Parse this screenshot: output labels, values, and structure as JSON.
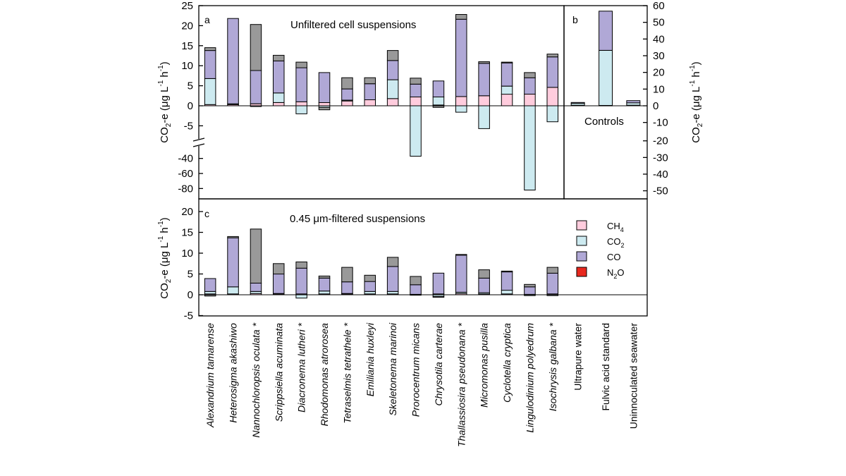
{
  "figure": {
    "yaxis_label_main": "CO",
    "yaxis_label_sub": "2",
    "yaxis_label_rest": "-e (μg L",
    "yaxis_label_exp1": "-1",
    "yaxis_label_mid": " h",
    "yaxis_label_exp2": "-1",
    "yaxis_label_close": ")",
    "panel_a": {
      "letter": "a",
      "title": "Unfiltered cell suspensions"
    },
    "panel_b": {
      "letter": "b",
      "title": "Controls"
    },
    "panel_c": {
      "letter": "c",
      "title": "0.45 μm-filtered suspensions"
    }
  },
  "legend": [
    {
      "label": "CH",
      "sub": "4",
      "color": "#ffccdd"
    },
    {
      "label": "CO",
      "sub": "2",
      "color": "#cdeaf0"
    },
    {
      "label": "CO",
      "sub": "",
      "color": "#b0a8d6"
    },
    {
      "label": "N",
      "sub": "2",
      "suffix": "O",
      "color": "#e8281e"
    }
  ],
  "chart_data": [
    {
      "panel": "a",
      "type": "bar",
      "stacked": true,
      "title": "Unfiltered cell suspensions",
      "ylabel": "CO2-e (μg L-1 h-1)",
      "ylim_upper": [
        -7,
        25
      ],
      "ylim_lower": [
        -90,
        -30
      ],
      "axis_break": true,
      "yticks": [
        25,
        20,
        15,
        10,
        5,
        0,
        -5,
        -40,
        -60,
        -80
      ],
      "categories": [
        "Alexandrium tamarense",
        "Heterosigma akashiwo",
        "Nannochloropsis oculata *",
        "Scrippsiella acuminata",
        "Diacronema lutheri *",
        "Rhodomonas atrorosea",
        "Tetraselmis tetrathele *",
        "Emiliania huxleyi",
        "Skeletonema marinoi",
        "Prorocentrum micans",
        "Chrysotila carterae",
        "Thallassiosira pseudonana *",
        "Micromonas pusilla",
        "Cyclotella cryptica",
        "Lingulodinium polyedrum",
        "Isochrysis galbana *"
      ],
      "series": [
        {
          "name": "CH4",
          "values": [
            0.3,
            0.3,
            0.5,
            0.8,
            1.0,
            0.8,
            1.2,
            1.5,
            1.8,
            2.2,
            0.2,
            2.3,
            2.5,
            2.9,
            2.9,
            4.6
          ]
        },
        {
          "name": "CO2",
          "values": [
            6.5,
            0.2,
            -0.2,
            2.4,
            -2.0,
            -0.4,
            0.2,
            0.0,
            4.7,
            -37.0,
            2.0,
            -1.6,
            -5.7,
            2.0,
            -82.0,
            -4.0
          ]
        },
        {
          "name": "CO",
          "values": [
            7.0,
            21.3,
            8.3,
            8.0,
            8.5,
            7.5,
            2.8,
            4.0,
            4.8,
            3.2,
            4.0,
            19.3,
            8.1,
            5.8,
            4.1,
            7.6
          ]
        },
        {
          "name": "N2O",
          "values": [
            0.7,
            0.0,
            11.5,
            1.4,
            1.4,
            -0.6,
            2.8,
            1.5,
            2.5,
            1.5,
            -0.4,
            1.2,
            0.4,
            0.2,
            1.3,
            0.7
          ]
        }
      ]
    },
    {
      "panel": "b",
      "type": "bar",
      "stacked": true,
      "title": "Controls",
      "ylim_upper": [
        -16.8,
        60
      ],
      "ylim_lower": [
        -54,
        -18
      ],
      "yticks": [
        60,
        50,
        40,
        30,
        20,
        10,
        0,
        -10,
        -20,
        -30,
        -40,
        -50
      ],
      "categories": [
        "Ultrapure water",
        "Fulvic acid standard",
        "Uninnoculated seawater"
      ],
      "series": [
        {
          "name": "CH4",
          "values": [
            0.3,
            0.2,
            0.3
          ]
        },
        {
          "name": "CO2",
          "values": [
            1.2,
            33.0,
            1.5
          ]
        },
        {
          "name": "CO",
          "values": [
            0.5,
            23.5,
            1.3
          ]
        },
        {
          "name": "N2O",
          "values": [
            0,
            0,
            0
          ]
        }
      ]
    },
    {
      "panel": "c",
      "type": "bar",
      "stacked": true,
      "title": "0.45 μm-filtered suspensions",
      "ylim": [
        -5,
        20
      ],
      "yticks": [
        20,
        15,
        10,
        5,
        0,
        -5
      ],
      "categories": [
        "Alexandrium tamarense",
        "Heterosigma akashiwo",
        "Nannochloropsis oculata *",
        "Scrippsiella acuminata",
        "Diacronema lutheri *",
        "Rhodomonas atrorosea",
        "Tetraselmis tetrathele *",
        "Emiliania huxleyi",
        "Skeletonema marinoi",
        "Prorocentrum micans",
        "Chrysotila carterae",
        "Thallassiosira pseudonana *",
        "Micromonas pusilla",
        "Cyclotella cryptica",
        "Lingulodinium polyedrum",
        "Isochrysis galbana *"
      ],
      "series": [
        {
          "name": "CH4",
          "values": [
            0.2,
            0.2,
            0.3,
            0.2,
            0.2,
            0.2,
            0.2,
            0.2,
            0.2,
            0.1,
            0.2,
            0.3,
            0.2,
            0.2,
            0.1,
            0.2
          ]
        },
        {
          "name": "CO2",
          "values": [
            0.6,
            1.7,
            0.5,
            0.1,
            -0.8,
            0.7,
            0.1,
            0.6,
            0.6,
            -0.1,
            -0.4,
            0.3,
            0.3,
            0.9,
            -0.2,
            -0.2
          ]
        },
        {
          "name": "CO",
          "values": [
            3.1,
            11.8,
            2.0,
            4.7,
            6.2,
            3.1,
            2.8,
            2.4,
            6.0,
            2.3,
            5.0,
            8.9,
            3.5,
            4.4,
            1.8,
            5.0
          ]
        },
        {
          "name": "N2O",
          "values": [
            -0.3,
            0.3,
            13.0,
            2.5,
            1.5,
            0.5,
            3.5,
            1.5,
            2.2,
            2.0,
            -0.2,
            0.2,
            2.0,
            0.2,
            0.6,
            1.4
          ]
        }
      ]
    }
  ]
}
